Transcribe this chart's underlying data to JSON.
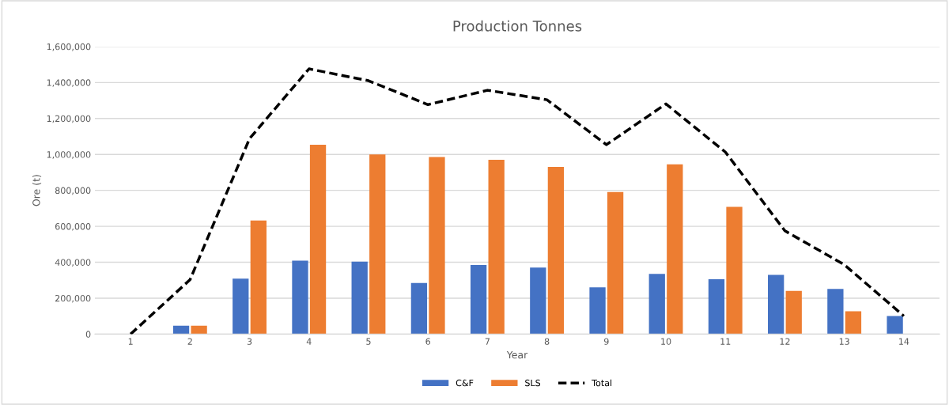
{
  "chart_data": {
    "type": "bar",
    "title": "Production Tonnes",
    "xlabel": "Year",
    "ylabel": "Ore (t)",
    "categories": [
      "1",
      "2",
      "3",
      "4",
      "5",
      "6",
      "7",
      "8",
      "9",
      "10",
      "11",
      "12",
      "13",
      "14"
    ],
    "series": [
      {
        "name": "C&F",
        "color": "#4472c4",
        "values": [
          0,
          47000,
          309000,
          409000,
          403000,
          285000,
          385000,
          370000,
          260000,
          335000,
          305000,
          330000,
          251000,
          101000
        ]
      },
      {
        "name": "SLS",
        "color": "#ed7d31",
        "values": [
          0,
          47000,
          632000,
          1054000,
          1000000,
          985000,
          970000,
          930000,
          791000,
          945000,
          708000,
          240000,
          127000,
          0
        ]
      },
      {
        "name": "Total",
        "type": "line",
        "color": "#000000",
        "line_style": "dashed",
        "values": [
          0,
          303000,
          1088000,
          1476000,
          1410000,
          1277000,
          1357000,
          1304000,
          1054000,
          1281000,
          1013000,
          575000,
          386000,
          101000
        ]
      }
    ],
    "ylim": [
      0,
      1600000
    ],
    "yticks": [
      {
        "value": 0,
        "label": "0"
      },
      {
        "value": 200000,
        "label": "200,000"
      },
      {
        "value": 400000,
        "label": "400,000"
      },
      {
        "value": 600000,
        "label": "600,000"
      },
      {
        "value": 800000,
        "label": "800,000"
      },
      {
        "value": 1000000,
        "label": "1,000,000"
      },
      {
        "value": 1200000,
        "label": "1,200,000"
      },
      {
        "value": 1400000,
        "label": "1,400,000"
      },
      {
        "value": 1600000,
        "label": "1,600,000"
      }
    ],
    "grid": "y",
    "legend": "bottom"
  }
}
